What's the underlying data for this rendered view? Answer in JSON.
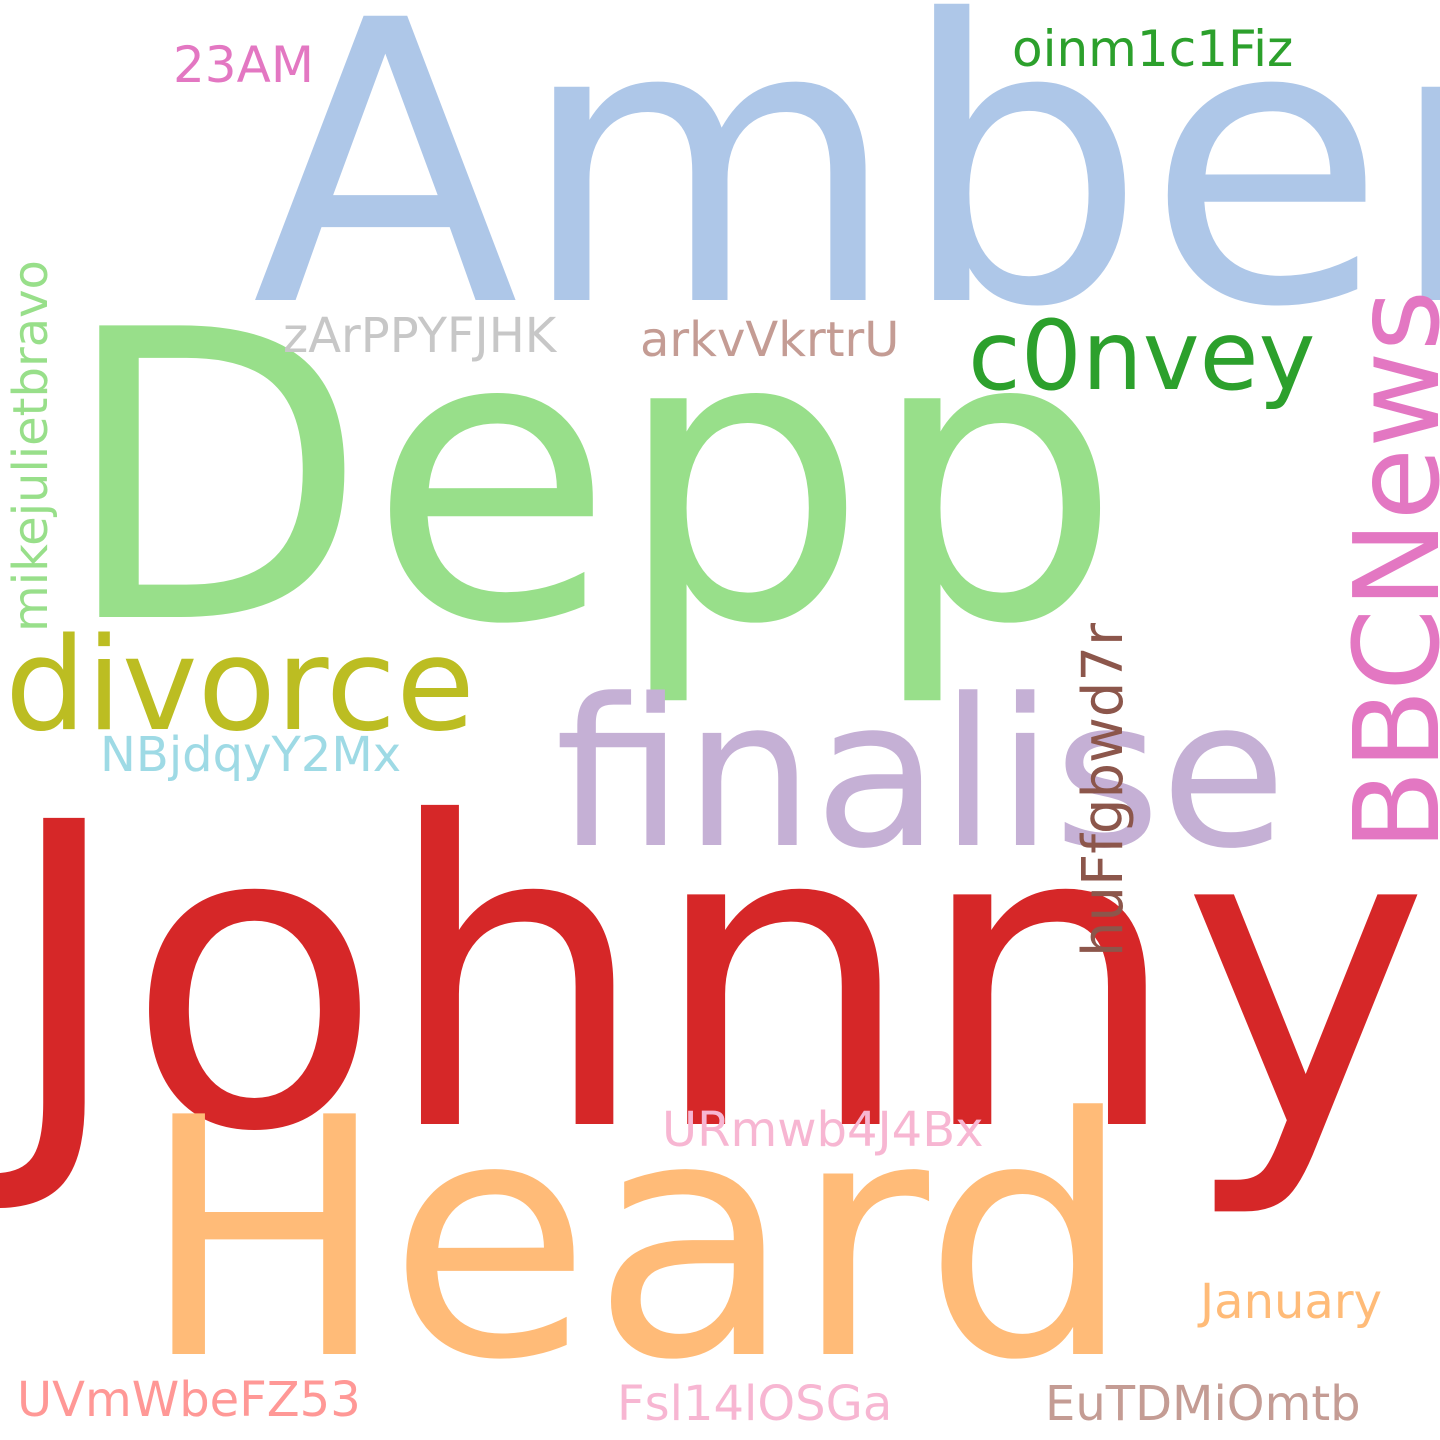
{
  "words": [
    {
      "id": "johnny",
      "text": "Johnny",
      "color": "#d62728",
      "orientation": "horizontal"
    },
    {
      "id": "amber",
      "text": "Amber",
      "color": "#aec7e8",
      "orientation": "horizontal"
    },
    {
      "id": "depp",
      "text": "Depp",
      "color": "#98df8a",
      "orientation": "horizontal"
    },
    {
      "id": "heard",
      "text": "Heard",
      "color": "#ffbb78",
      "orientation": "horizontal"
    },
    {
      "id": "finalise",
      "text": "finalise",
      "color": "#c5b0d5",
      "orientation": "horizontal"
    },
    {
      "id": "divorce",
      "text": "divorce",
      "color": "#bcbd22",
      "orientation": "horizontal"
    },
    {
      "id": "bbc",
      "text": "BBCNews",
      "color": "#e377c2",
      "orientation": "vertical"
    },
    {
      "id": "convey",
      "text": "c0nvey",
      "color": "#2ca02c",
      "orientation": "horizontal"
    },
    {
      "id": "oinm",
      "text": "oinm1c1Fiz",
      "color": "#2ca02c",
      "orientation": "horizontal"
    },
    {
      "id": "23am",
      "text": "23AM",
      "color": "#e377c2",
      "orientation": "horizontal"
    },
    {
      "id": "zar",
      "text": "zArPPYFJHK",
      "color": "#c7c7c7",
      "orientation": "horizontal"
    },
    {
      "id": "arkv",
      "text": "arkvVkrtrU",
      "color": "#c49c94",
      "orientation": "horizontal"
    },
    {
      "id": "huf",
      "text": "huFfgbwd7r",
      "color": "#8c564b",
      "orientation": "vertical"
    },
    {
      "id": "mike",
      "text": "mikejulietbravo",
      "color": "#98df8a",
      "orientation": "vertical"
    },
    {
      "id": "nbj",
      "text": "NBjdqyY2Mx",
      "color": "#9edae5",
      "orientation": "horizontal"
    },
    {
      "id": "urm",
      "text": "URmwb4J4Bx",
      "color": "#f7b6d2",
      "orientation": "horizontal"
    },
    {
      "id": "january",
      "text": "January",
      "color": "#ffbb78",
      "orientation": "horizontal"
    },
    {
      "id": "uvm",
      "text": "UVmWbeFZ53",
      "color": "#ff9896",
      "orientation": "horizontal"
    },
    {
      "id": "fsl",
      "text": "Fsl14lOSGa",
      "color": "#f7b6d2",
      "orientation": "horizontal"
    },
    {
      "id": "eut",
      "text": "EuTDMiOmtb",
      "color": "#c49c94",
      "orientation": "horizontal"
    }
  ]
}
